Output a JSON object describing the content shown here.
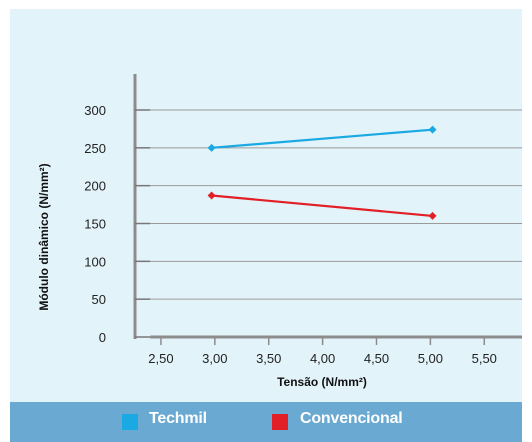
{
  "chart_data": {
    "type": "line",
    "title": "",
    "xlabel": "Tensão (N/mm²)",
    "ylabel": "Módulo dinâmico (N/mm²)",
    "xlim": [
      2.25,
      5.85
    ],
    "ylim": [
      0,
      300
    ],
    "x_ticks": [
      2.5,
      3.0,
      3.5,
      4.0,
      4.5,
      5.0,
      5.5
    ],
    "x_tick_labels": [
      "2,50",
      "3,00",
      "3,50",
      "4,00",
      "4,50",
      "5,00",
      "5,50"
    ],
    "y_ticks": [
      0,
      50,
      100,
      150,
      200,
      250,
      300
    ],
    "y_tick_labels": [
      "0",
      "50",
      "100",
      "150",
      "200",
      "250",
      "300"
    ],
    "grid": "horizontal",
    "legend_position": "bottom",
    "series": [
      {
        "name": "Techmil",
        "color": "#1aa9e2",
        "x": [
          2.97,
          5.02
        ],
        "y": [
          250,
          274
        ]
      },
      {
        "name": "Convencional",
        "color": "#e21f26",
        "x": [
          2.97,
          5.02
        ],
        "y": [
          187,
          160
        ]
      }
    ]
  }
}
